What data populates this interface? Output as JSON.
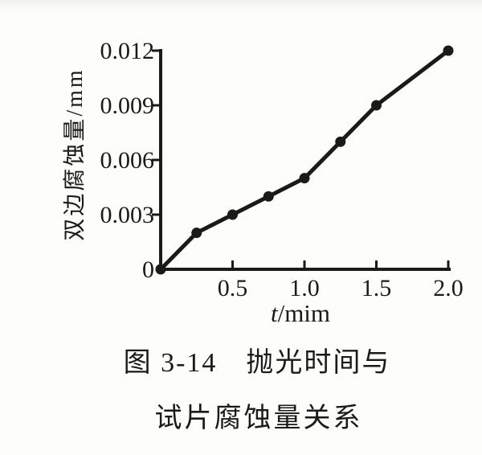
{
  "figure": {
    "caption_line1": "图 3-14　抛光时间与",
    "caption_line2": "试片腐蚀量关系"
  },
  "chart_data": {
    "type": "line",
    "xlabel_variable": "t",
    "xlabel_unit": "/mim",
    "ylabel": "双边腐蚀量/mm",
    "x": [
      0,
      0.25,
      0.5,
      0.75,
      1.0,
      1.25,
      1.5,
      2.0
    ],
    "y": [
      0,
      0.002,
      0.003,
      0.004,
      0.005,
      0.007,
      0.009,
      0.012
    ],
    "xlim": [
      0,
      2.0
    ],
    "ylim": [
      0,
      0.012
    ],
    "x_ticks": [
      {
        "value": 0.5,
        "label": "0.5"
      },
      {
        "value": 1.0,
        "label": "1.0"
      },
      {
        "value": 1.5,
        "label": "1.5"
      },
      {
        "value": 2.0,
        "label": "2.0"
      }
    ],
    "y_ticks": [
      {
        "value": 0,
        "label": "0",
        "has_mark": false
      },
      {
        "value": 0.003,
        "label": "0.003",
        "has_mark": true
      },
      {
        "value": 0.006,
        "label": "0.006",
        "has_mark": true
      },
      {
        "value": 0.009,
        "label": "0.009",
        "has_mark": true
      },
      {
        "value": 0.012,
        "label": "0.012",
        "has_mark": true
      }
    ],
    "grid": false,
    "legend": "none",
    "marker": "filled-circle",
    "colors": {
      "ink": "#1b1a18",
      "paper": "#fdfdfb"
    }
  }
}
